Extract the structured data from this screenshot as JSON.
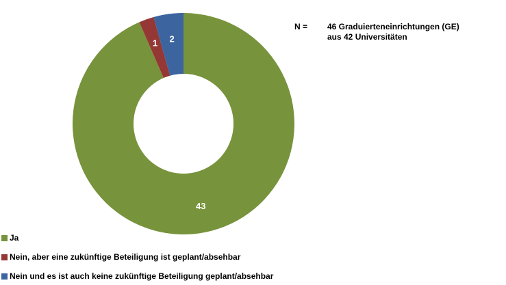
{
  "chart_data": {
    "type": "donut",
    "categories": [
      "Ja",
      "Nein, aber eine zukünftige Beteiligung ist geplant/absehbar",
      "Nein und es ist auch keine zukünftige Beteiligung geplant/absehbar"
    ],
    "values": [
      43,
      1,
      2
    ],
    "colors": [
      "#77933c",
      "#953735",
      "#3c65a0"
    ],
    "annotation": {
      "label": "N =",
      "lines": [
        "46 Graduierteneinrichtungen (GE)",
        "aus 42 Universitäten"
      ]
    },
    "legend": "bottom-left"
  }
}
